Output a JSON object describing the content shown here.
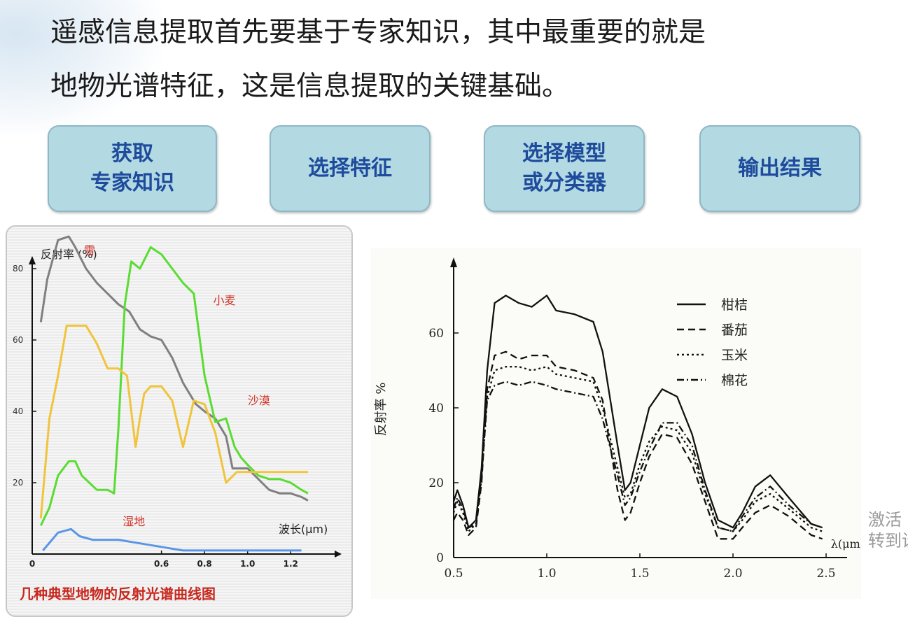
{
  "heading": {
    "line1": "遥感信息提取首先要基于专家知识，其中最重要的就是",
    "line2": "地物光谱特征，这是信息提取的关键基础。"
  },
  "steps": [
    {
      "line1": "获取",
      "line2": "专家知识"
    },
    {
      "line1": "选择特征",
      "line2": ""
    },
    {
      "line1": "选择模型",
      "line2": "或分类器"
    },
    {
      "line1": "输出结果",
      "line2": ""
    }
  ],
  "colors": {
    "step_fill": "#b3d9e2",
    "step_text": "#1e4b9c"
  },
  "chart_data": [
    {
      "type": "line",
      "title": "几种典型地物的反射光谱曲线图",
      "xlabel": "波长(μm)",
      "ylabel": "反射率 (%)",
      "xlim": [
        0,
        1.3
      ],
      "ylim": [
        0,
        90
      ],
      "x_ticks": [
        "0",
        "0.6",
        "0.8",
        "1.0",
        "1.2"
      ],
      "y_ticks": [
        "20",
        "40",
        "60",
        "80"
      ],
      "series": [
        {
          "name": "雪",
          "color": "#808080",
          "x": [
            0.04,
            0.07,
            0.12,
            0.17,
            0.2,
            0.25,
            0.3,
            0.35,
            0.4,
            0.45,
            0.5,
            0.55,
            0.6,
            0.65,
            0.7,
            0.72,
            0.76,
            0.8,
            0.85,
            0.9,
            0.93,
            0.97,
            1.0,
            1.05,
            1.1,
            1.15,
            1.2,
            1.25,
            1.28
          ],
          "y": [
            65,
            77,
            88,
            89,
            86,
            80,
            76,
            73,
            70,
            68,
            63,
            61,
            60,
            55,
            48,
            46,
            42,
            40,
            38,
            33,
            24,
            24,
            24,
            21,
            18,
            17,
            17,
            16,
            15
          ]
        },
        {
          "name": "小麦",
          "color": "#5adc32",
          "x": [
            0.04,
            0.08,
            0.12,
            0.17,
            0.2,
            0.23,
            0.3,
            0.35,
            0.38,
            0.4,
            0.43,
            0.46,
            0.5,
            0.55,
            0.6,
            0.65,
            0.7,
            0.75,
            0.8,
            0.85,
            0.9,
            0.94,
            0.97,
            1.0,
            1.05,
            1.1,
            1.15,
            1.2,
            1.25,
            1.28
          ],
          "y": [
            8,
            13,
            22,
            26,
            26,
            22,
            18,
            18,
            17,
            35,
            70,
            82,
            80,
            86,
            84,
            80,
            76,
            73,
            50,
            37,
            38,
            30,
            27,
            25,
            22,
            21,
            21,
            20,
            18,
            17
          ]
        },
        {
          "name": "沙漠",
          "color": "#f0c43c",
          "x": [
            0.04,
            0.08,
            0.12,
            0.16,
            0.2,
            0.25,
            0.3,
            0.35,
            0.4,
            0.44,
            0.48,
            0.5,
            0.52,
            0.55,
            0.6,
            0.65,
            0.7,
            0.75,
            0.8,
            0.85,
            0.9,
            0.95,
            0.98,
            1.0,
            1.05,
            1.1,
            1.15,
            1.2,
            1.25,
            1.28
          ],
          "y": [
            10,
            38,
            50,
            64,
            64,
            64,
            59,
            52,
            52,
            50,
            30,
            38,
            45,
            47,
            47,
            43,
            30,
            43,
            42,
            34,
            20,
            23,
            23,
            23,
            23,
            23,
            23,
            23,
            23,
            23
          ]
        },
        {
          "name": "湿地",
          "color": "#5a96e6",
          "x": [
            0.05,
            0.12,
            0.18,
            0.22,
            0.28,
            0.35,
            0.4,
            0.5,
            0.6,
            0.7,
            0.8,
            0.9,
            1.0,
            1.1,
            1.2,
            1.25
          ],
          "y": [
            1,
            6,
            7,
            5,
            4,
            4,
            4,
            3,
            2,
            1,
            1,
            1,
            1,
            1,
            1,
            1
          ]
        }
      ]
    },
    {
      "type": "line",
      "title": "",
      "xlabel": "λ(μm)",
      "ylabel": "反射率 %",
      "xlim": [
        0.5,
        2.5
      ],
      "ylim": [
        0,
        70
      ],
      "x_ticks": [
        "0.5",
        "1.0",
        "1.5",
        "2.0",
        "2.5"
      ],
      "y_ticks": [
        "0",
        "20",
        "40",
        "60"
      ],
      "legend_position": "top-right",
      "series": [
        {
          "name": "柑桔",
          "dash": "solid",
          "x": [
            0.5,
            0.52,
            0.55,
            0.58,
            0.62,
            0.65,
            0.68,
            0.72,
            0.78,
            0.85,
            0.92,
            1.0,
            1.05,
            1.15,
            1.25,
            1.3,
            1.38,
            1.42,
            1.45,
            1.5,
            1.55,
            1.62,
            1.7,
            1.78,
            1.85,
            1.92,
            2.0,
            2.05,
            2.12,
            2.2,
            2.3,
            2.42,
            2.48
          ],
          "y": [
            15,
            18,
            14,
            8,
            10,
            24,
            50,
            68,
            70,
            68,
            67,
            70,
            66,
            65,
            63,
            55,
            30,
            18,
            20,
            30,
            40,
            45,
            43,
            33,
            20,
            10,
            8,
            12,
            19,
            22,
            16,
            9,
            8
          ]
        },
        {
          "name": "番茄",
          "dash": "dashed",
          "x": [
            0.5,
            0.52,
            0.55,
            0.58,
            0.62,
            0.65,
            0.68,
            0.72,
            0.78,
            0.85,
            0.92,
            1.0,
            1.05,
            1.15,
            1.25,
            1.3,
            1.38,
            1.42,
            1.45,
            1.5,
            1.55,
            1.62,
            1.7,
            1.78,
            1.85,
            1.92,
            2.0,
            2.05,
            2.12,
            2.2,
            2.3,
            2.42,
            2.48
          ],
          "y": [
            10,
            12,
            10,
            6,
            8,
            20,
            45,
            54,
            55,
            53,
            54,
            54,
            51,
            50,
            48,
            42,
            18,
            10,
            12,
            20,
            27,
            33,
            32,
            25,
            15,
            5,
            5,
            8,
            12,
            14,
            11,
            6,
            5
          ]
        },
        {
          "name": "玉米",
          "dash": "dotted",
          "x": [
            0.5,
            0.52,
            0.55,
            0.58,
            0.62,
            0.65,
            0.68,
            0.72,
            0.78,
            0.85,
            0.92,
            1.0,
            1.05,
            1.15,
            1.25,
            1.3,
            1.38,
            1.42,
            1.45,
            1.5,
            1.55,
            1.62,
            1.7,
            1.78,
            1.85,
            1.92,
            2.0,
            2.05,
            2.12,
            2.2,
            2.3,
            2.42,
            2.48
          ],
          "y": [
            12,
            15,
            12,
            7,
            9,
            21,
            43,
            50,
            51,
            51,
            50,
            51,
            49,
            48,
            47,
            40,
            24,
            16,
            17,
            25,
            31,
            35,
            34,
            28,
            17,
            8,
            7,
            10,
            15,
            17,
            13,
            8,
            7
          ]
        },
        {
          "name": "棉花",
          "dash": "dash-dot",
          "x": [
            0.5,
            0.52,
            0.55,
            0.58,
            0.62,
            0.65,
            0.68,
            0.72,
            0.78,
            0.85,
            0.92,
            1.0,
            1.05,
            1.15,
            1.25,
            1.3,
            1.38,
            1.42,
            1.45,
            1.5,
            1.55,
            1.62,
            1.7,
            1.78,
            1.85,
            1.92,
            2.0,
            2.05,
            2.12,
            2.2,
            2.3,
            2.42,
            2.48
          ],
          "y": [
            13,
            16,
            13,
            8,
            9,
            22,
            42,
            46,
            47,
            46,
            47,
            46,
            45,
            44,
            43,
            37,
            22,
            14,
            16,
            23,
            29,
            36,
            36,
            30,
            18,
            8,
            7,
            11,
            16,
            19,
            14,
            9,
            8
          ]
        }
      ]
    }
  ],
  "watermark": {
    "line1": "激活",
    "line2": "转到设"
  }
}
